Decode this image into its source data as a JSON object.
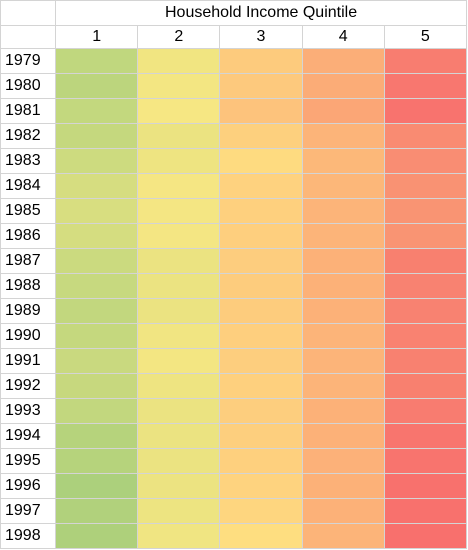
{
  "sheet": {
    "title": "Household Income Quintile",
    "quintiles": [
      "1",
      "2",
      "3",
      "4",
      "5"
    ]
  },
  "colors": {
    "scale_low": "#63be7b",
    "scale_mid": "#ffeb84",
    "scale_high": "#f8696b"
  },
  "rows": [
    {
      "year": "1979",
      "colors": [
        "#c0d77e",
        "#f1e581",
        "#fdcb7d",
        "#fbae78",
        "#f87d70"
      ]
    },
    {
      "year": "1980",
      "colors": [
        "#bcd57d",
        "#f3e682",
        "#fdc97d",
        "#fbac77",
        "#f8776f"
      ]
    },
    {
      "year": "1981",
      "colors": [
        "#c3d87e",
        "#f6e783",
        "#fdc37c",
        "#fba676",
        "#f8736e"
      ]
    },
    {
      "year": "1982",
      "colors": [
        "#c5d87e",
        "#ebe381",
        "#fdd07e",
        "#fcb479",
        "#f98b72"
      ]
    },
    {
      "year": "1983",
      "colors": [
        "#cddb7f",
        "#eee481",
        "#fedb80",
        "#fcb879",
        "#f98d73"
      ]
    },
    {
      "year": "1984",
      "colors": [
        "#d6dd80",
        "#f5e683",
        "#fed27f",
        "#fcb779",
        "#f99273"
      ]
    },
    {
      "year": "1985",
      "colors": [
        "#d8de80",
        "#f4e683",
        "#fed07e",
        "#fcb479",
        "#f99473"
      ]
    },
    {
      "year": "1986",
      "colors": [
        "#d5dd80",
        "#f4e683",
        "#fecf7e",
        "#fcb479",
        "#f99473"
      ]
    },
    {
      "year": "1987",
      "colors": [
        "#cbda7f",
        "#ebe381",
        "#fdcd7e",
        "#fcb178",
        "#f8806f"
      ]
    },
    {
      "year": "1988",
      "colors": [
        "#c7d97f",
        "#ebe381",
        "#fdcc7d",
        "#fcb178",
        "#f88271"
      ]
    },
    {
      "year": "1989",
      "colors": [
        "#c2d77e",
        "#ebe381",
        "#fdcc7d",
        "#fcb178",
        "#f88271"
      ]
    },
    {
      "year": "1990",
      "colors": [
        "#c5d87e",
        "#f1e582",
        "#fecf7e",
        "#fcb479",
        "#f98271"
      ]
    },
    {
      "year": "1991",
      "colors": [
        "#c9d97f",
        "#f3e682",
        "#fdce7e",
        "#fcb479",
        "#f88170"
      ]
    },
    {
      "year": "1992",
      "colors": [
        "#c7d87e",
        "#eee481",
        "#fed07e",
        "#fcb479",
        "#f8806f"
      ]
    },
    {
      "year": "1993",
      "colors": [
        "#c2d77e",
        "#ebe381",
        "#fdce7e",
        "#fcb178",
        "#f87c70"
      ]
    },
    {
      "year": "1994",
      "colors": [
        "#b6d37c",
        "#ebe381",
        "#fdcf7e",
        "#fcb178",
        "#f8756e"
      ]
    },
    {
      "year": "1995",
      "colors": [
        "#b6d37c",
        "#ebe381",
        "#fed07e",
        "#fcb179",
        "#f8746e"
      ]
    },
    {
      "year": "1996",
      "colors": [
        "#acd07c",
        "#ece381",
        "#fed37f",
        "#fcb178",
        "#f8716d"
      ]
    },
    {
      "year": "1997",
      "colors": [
        "#b1d17c",
        "#ede481",
        "#fed67f",
        "#fcb178",
        "#f8716d"
      ]
    },
    {
      "year": "1998",
      "colors": [
        "#aed07b",
        "#f0e582",
        "#fede80",
        "#fcb479",
        "#f8706d"
      ]
    }
  ]
}
